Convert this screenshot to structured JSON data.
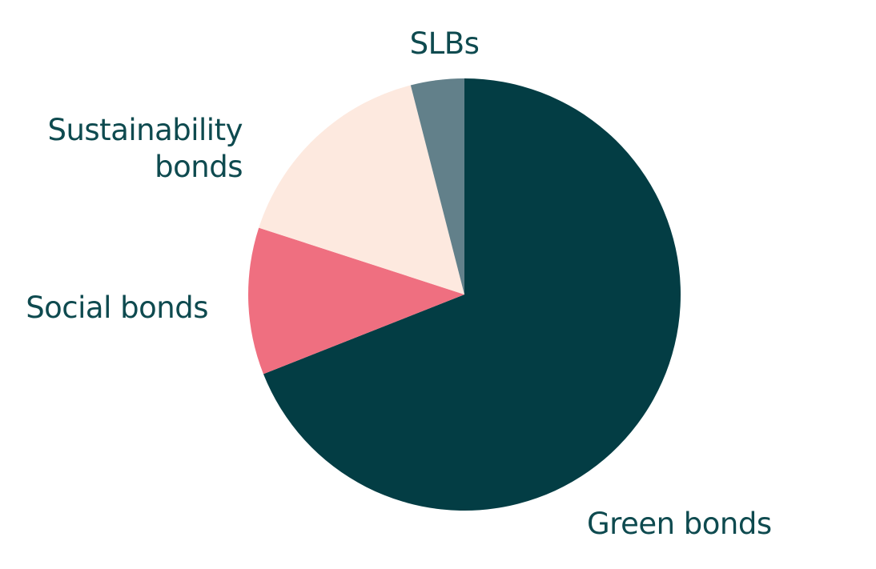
{
  "chart_data": {
    "type": "pie",
    "categories": [
      "Green bonds",
      "Social bonds",
      "Sustainability\nbonds",
      "SLBs"
    ],
    "values": [
      69,
      11,
      16,
      4
    ],
    "colors": [
      "#033d44",
      "#ef6f80",
      "#fde9df",
      "#62808a"
    ]
  }
}
